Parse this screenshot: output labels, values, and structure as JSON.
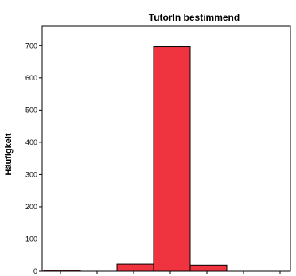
{
  "chart_data": {
    "type": "bar",
    "title": "TutorIn bestimmend",
    "xlabel": "",
    "ylabel": "Häufigkeit",
    "ylim": [
      0,
      760
    ],
    "yticks": [
      0,
      100,
      200,
      300,
      400,
      500,
      600,
      700
    ],
    "bins": [
      {
        "value": 3
      },
      {
        "value": 0
      },
      {
        "value": 22
      },
      {
        "value": 697
      },
      {
        "value": 19
      },
      {
        "value": 0
      },
      {
        "value": 0
      }
    ],
    "bar_color": "#f0343f",
    "edge_color": "#000000",
    "grid": false,
    "legend": "none"
  }
}
